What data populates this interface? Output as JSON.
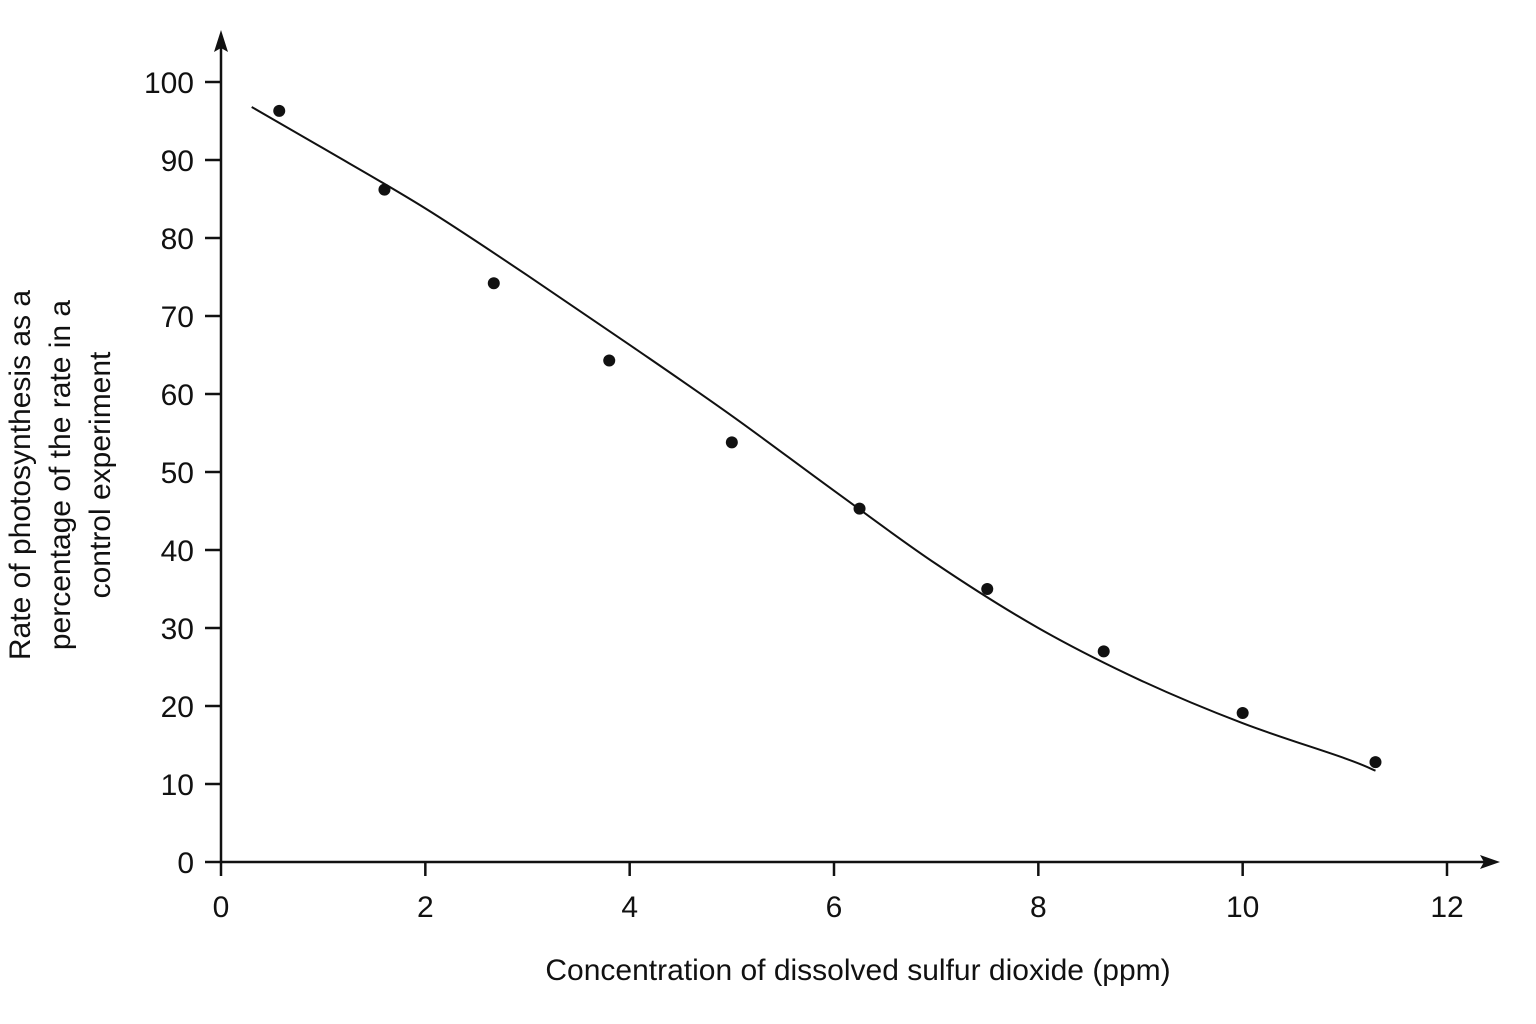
{
  "chart_data": {
    "type": "scatter",
    "title": "",
    "xlabel": "Concentration of dissolved sulfur dioxide (ppm)",
    "ylabel_lines": [
      "Rate of photosynthesis as a",
      "percentage of the rate in a",
      "control experiment"
    ],
    "xlim": [
      0,
      12
    ],
    "ylim": [
      0,
      100
    ],
    "x_ticks": [
      0,
      2,
      4,
      6,
      8,
      10,
      12
    ],
    "y_ticks": [
      0,
      10,
      20,
      30,
      40,
      50,
      60,
      70,
      80,
      90,
      100
    ],
    "grid": false,
    "legend": "none",
    "colors": {
      "axis": "#111111",
      "points": "#111111",
      "curve": "#111111"
    },
    "points": [
      {
        "x": 0.57,
        "y": 96.3
      },
      {
        "x": 1.6,
        "y": 86.2
      },
      {
        "x": 2.67,
        "y": 74.2
      },
      {
        "x": 3.8,
        "y": 64.3
      },
      {
        "x": 5.0,
        "y": 53.8
      },
      {
        "x": 6.25,
        "y": 45.3
      },
      {
        "x": 7.5,
        "y": 35.0
      },
      {
        "x": 8.64,
        "y": 27.0
      },
      {
        "x": 10.0,
        "y": 19.1
      },
      {
        "x": 11.3,
        "y": 12.8
      }
    ],
    "best_fit_curve": [
      {
        "x": 0.3,
        "y": 96.8
      },
      {
        "x": 1.0,
        "y": 91.5
      },
      {
        "x": 2.0,
        "y": 83.8
      },
      {
        "x": 3.0,
        "y": 75.2
      },
      {
        "x": 4.0,
        "y": 66.3
      },
      {
        "x": 5.0,
        "y": 57.2
      },
      {
        "x": 6.0,
        "y": 47.6
      },
      {
        "x": 7.0,
        "y": 38.2
      },
      {
        "x": 8.0,
        "y": 30.0
      },
      {
        "x": 9.0,
        "y": 23.3
      },
      {
        "x": 10.0,
        "y": 17.8
      },
      {
        "x": 11.0,
        "y": 13.3
      },
      {
        "x": 11.3,
        "y": 11.7
      }
    ]
  }
}
